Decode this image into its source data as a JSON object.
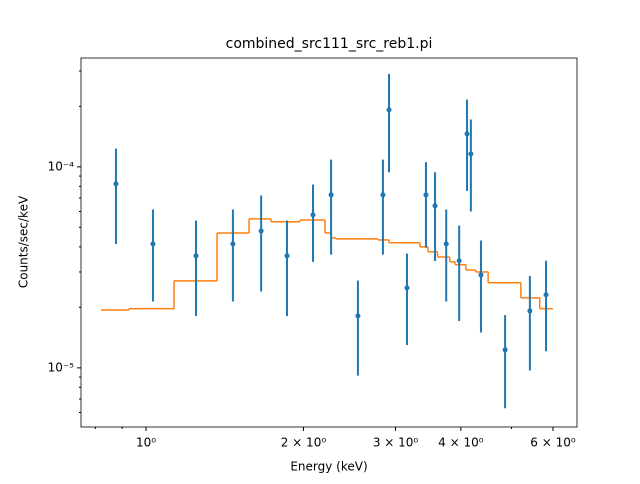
{
  "chart_data": {
    "type": "errorbar",
    "title": "combined_src111_src_reb1.pi",
    "xlabel": "Energy (keV)",
    "ylabel": "Counts/sec/keV",
    "xscale": "log",
    "yscale": "log",
    "xlim": [
      0.751,
      6.67
    ],
    "ylim": [
      5.08e-06,
      0.000348
    ],
    "xticks": [
      {
        "value": 1,
        "label": "10⁰"
      },
      {
        "value": 2,
        "label": "2 × 10⁰"
      },
      {
        "value": 3,
        "label": "3 × 10⁰"
      },
      {
        "value": 4,
        "label": "4 × 10⁰"
      },
      {
        "value": 6,
        "label": "6 × 10⁰"
      }
    ],
    "xminor": [
      0.8,
      0.9,
      5
    ],
    "yticks": [
      {
        "value": 1e-05,
        "label": "10⁻⁵"
      },
      {
        "value": 0.0001,
        "label": "10⁻⁴"
      }
    ],
    "yminor": [
      6e-06,
      7e-06,
      8e-06,
      9e-06,
      2e-05,
      3e-05,
      4e-05,
      5e-05,
      6e-05,
      7e-05,
      8e-05,
      9e-05,
      0.0002,
      0.0003
    ],
    "color": "#1f77b4",
    "x": [
      0.876,
      1.031,
      1.246,
      1.466,
      1.66,
      1.86,
      2.086,
      2.259,
      2.542,
      2.838,
      2.915,
      3.155,
      3.43,
      3.57,
      3.75,
      3.97,
      4.11,
      4.18,
      4.37,
      4.86,
      5.42,
      5.82
    ],
    "values": [
      8.23e-05,
      4.14e-05,
      3.61e-05,
      4.14e-05,
      4.8e-05,
      3.61e-05,
      5.77e-05,
      7.26e-05,
      1.815e-05,
      7.26e-05,
      0.000192,
      2.5e-05,
      7.26e-05,
      6.4e-05,
      4.14e-05,
      3.41e-05,
      0.0001459,
      0.000116,
      2.9e-05,
      1.23e-05,
      1.92e-05,
      2.31e-05
    ],
    "errors": [
      4.1e-05,
      2e-05,
      1.8e-05,
      2e-05,
      2.4e-05,
      1.8e-05,
      2.4e-05,
      3.6e-05,
      9e-06,
      3.6e-05,
      9.8e-05,
      1.2e-05,
      3.3e-05,
      3e-05,
      2e-05,
      1.7e-05,
      7e-05,
      5.6e-05,
      1.4e-05,
      6e-06,
      9.5e-06,
      1.1e-05
    ],
    "model": {
      "color": "#ff7f0e",
      "bins": [
        0.82,
        0.928,
        1.131,
        1.367,
        1.574,
        1.734,
        1.97,
        2.199,
        2.259,
        2.307,
        2.777,
        2.915,
        3.34,
        3.46,
        3.61,
        3.81,
        3.9,
        4.09,
        4.27,
        4.51,
        5.21,
        5.66,
        6.0
      ],
      "values": [
        1.94e-05,
        1.97e-05,
        2.71e-05,
        4.69e-05,
        5.51e-05,
        5.33e-05,
        5.44e-05,
        4.69e-05,
        4.43e-05,
        4.38e-05,
        4.33e-05,
        4.19e-05,
        4e-05,
        3.78e-05,
        3.56e-05,
        3.37e-05,
        3.26e-05,
        3.07e-05,
        3e-05,
        2.65e-05,
        2.23e-05,
        1.97e-05
      ]
    }
  }
}
